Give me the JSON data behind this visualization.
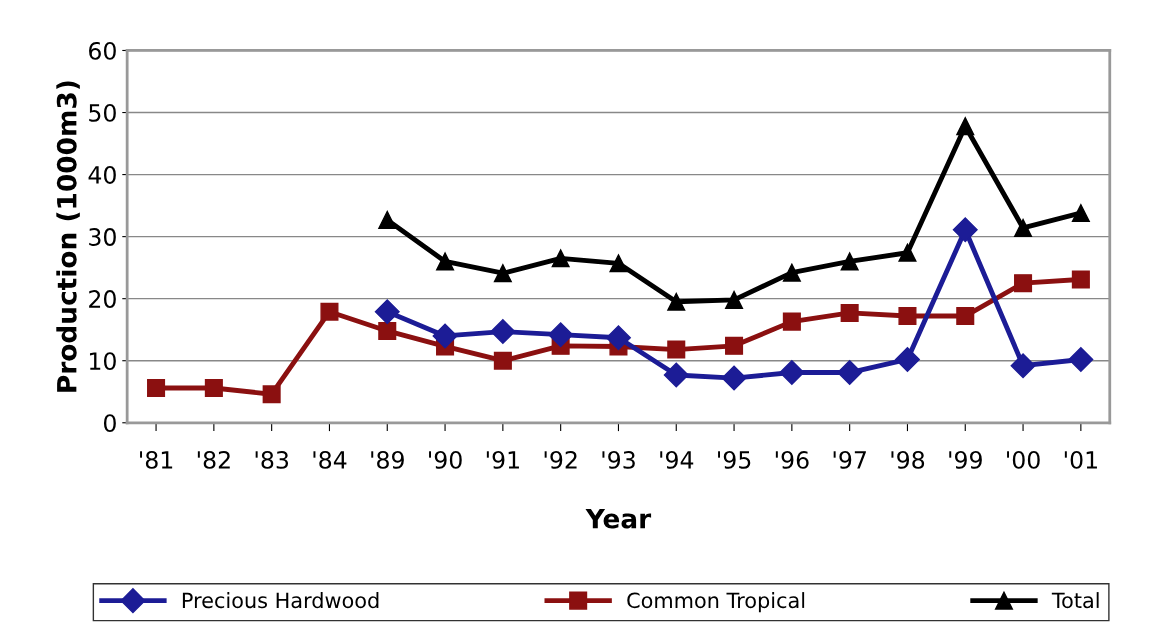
{
  "chart_data": {
    "type": "line",
    "xlabel": "Year",
    "ylabel": "Production (1000m3)",
    "categories": [
      "'81",
      "'82",
      "'83",
      "'84",
      "'89",
      "'90",
      "'91",
      "'92",
      "'93",
      "'94",
      "'95",
      "'96",
      "'97",
      "'98",
      "'99",
      "'00",
      "'01"
    ],
    "series": [
      {
        "name": "Precious Hardwood",
        "color": "#1c1c96",
        "marker": "diamond",
        "values": [
          null,
          null,
          null,
          null,
          17.9,
          14.0,
          14.7,
          14.2,
          13.7,
          7.7,
          7.2,
          8.1,
          8.1,
          10.2,
          31.1,
          9.2,
          10.2
        ]
      },
      {
        "name": "Common Tropical",
        "color": "#8b1010",
        "marker": "square",
        "values": [
          5.6,
          5.6,
          4.6,
          17.9,
          14.8,
          12.3,
          10.0,
          12.4,
          12.3,
          11.8,
          12.4,
          16.3,
          17.7,
          17.2,
          17.2,
          22.5,
          23.1
        ]
      },
      {
        "name": "Total",
        "color": "#000000",
        "marker": "triangle",
        "values": [
          null,
          null,
          null,
          null,
          32.7,
          26.0,
          24.1,
          26.5,
          25.7,
          19.5,
          19.8,
          24.2,
          26.0,
          27.4,
          47.8,
          31.4,
          33.8
        ]
      }
    ],
    "ylim": [
      0,
      60
    ],
    "yticks": [
      0,
      10,
      20,
      30,
      40,
      50,
      60
    ],
    "grid": "y",
    "legend": "bottom"
  }
}
